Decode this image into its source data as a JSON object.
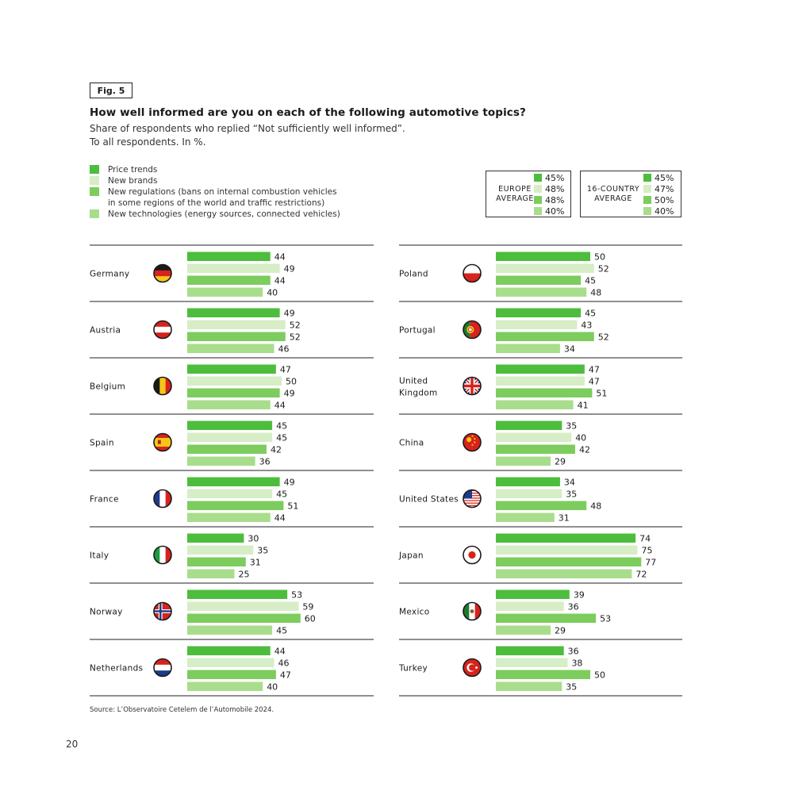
{
  "figure_label": "Fig. 5",
  "title": "How well informed are you on each of the following automotive topics?",
  "subtitle_line1": "Share of respondents who replied “Not sufficiently well informed”.",
  "subtitle_line2": "To all respondents. In %.",
  "colors": [
    "#4dbd3d",
    "#d6edc6",
    "#7ccc5e",
    "#a8dd8c"
  ],
  "legend": [
    {
      "label": "Price trends"
    },
    {
      "label": "New brands"
    },
    {
      "label": "New regulations (bans on internal combustion vehicles",
      "label2": "in some regions of the world and traffic restrictions)"
    },
    {
      "label": "New technologies (energy sources, connected vehicles)"
    }
  ],
  "europe_average": {
    "label1": "EUROPE",
    "label2": "AVERAGE",
    "values": [
      "45%",
      "48%",
      "48%",
      "40%"
    ]
  },
  "country16_average": {
    "label1": "16-COUNTRY",
    "label2": "AVERAGE",
    "values": [
      "45%",
      "47%",
      "50%",
      "40%"
    ]
  },
  "chart_data": {
    "type": "bar",
    "orientation": "horizontal",
    "series_names": [
      "Price trends",
      "New brands",
      "New regulations",
      "New technologies"
    ],
    "xlim": [
      0,
      80
    ],
    "panels": [
      {
        "countries": [
          {
            "name": "Germany",
            "flag": "germany-flag-icon",
            "values": [
              44,
              49,
              44,
              40
            ]
          },
          {
            "name": "Austria",
            "flag": "austria-flag-icon",
            "values": [
              49,
              52,
              52,
              46
            ]
          },
          {
            "name": "Belgium",
            "flag": "belgium-flag-icon",
            "values": [
              47,
              50,
              49,
              44
            ]
          },
          {
            "name": "Spain",
            "flag": "spain-flag-icon",
            "values": [
              45,
              45,
              42,
              36
            ]
          },
          {
            "name": "France",
            "flag": "france-flag-icon",
            "values": [
              49,
              45,
              51,
              44
            ]
          },
          {
            "name": "Italy",
            "flag": "italy-flag-icon",
            "values": [
              30,
              35,
              31,
              25
            ]
          },
          {
            "name": "Norway",
            "flag": "norway-flag-icon",
            "values": [
              53,
              59,
              60,
              45
            ]
          },
          {
            "name": "Netherlands",
            "flag": "netherlands-flag-icon",
            "values": [
              44,
              46,
              47,
              40
            ]
          }
        ]
      },
      {
        "countries": [
          {
            "name": "Poland",
            "flag": "poland-flag-icon",
            "values": [
              50,
              52,
              45,
              48
            ]
          },
          {
            "name": "Portugal",
            "flag": "portugal-flag-icon",
            "values": [
              45,
              43,
              52,
              34
            ]
          },
          {
            "name": "United Kingdom",
            "name_line1": "United",
            "name_line2": "Kingdom",
            "flag": "uk-flag-icon",
            "values": [
              47,
              47,
              51,
              41
            ]
          },
          {
            "name": "China",
            "flag": "china-flag-icon",
            "values": [
              35,
              40,
              42,
              29
            ]
          },
          {
            "name": "United States",
            "flag": "usa-flag-icon",
            "values": [
              34,
              35,
              48,
              31
            ]
          },
          {
            "name": "Japan",
            "flag": "japan-flag-icon",
            "values": [
              74,
              75,
              77,
              72
            ]
          },
          {
            "name": "Mexico",
            "flag": "mexico-flag-icon",
            "values": [
              39,
              36,
              53,
              29
            ]
          },
          {
            "name": "Turkey",
            "flag": "turkey-flag-icon",
            "values": [
              36,
              38,
              50,
              35
            ]
          }
        ]
      }
    ]
  },
  "source": "Source: L’Observatoire Cetelem de l’Automobile 2024.",
  "page_number": "20"
}
